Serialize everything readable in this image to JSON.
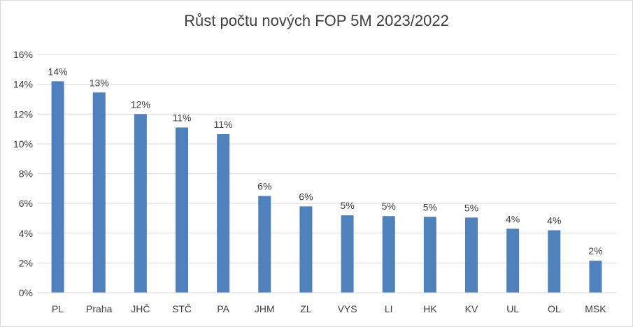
{
  "chart_data": {
    "type": "bar",
    "title": "Růst počtu nových FOP 5M 2023/2022",
    "categories": [
      "PL",
      "Praha",
      "JHČ",
      "STČ",
      "PA",
      "JHM",
      "ZL",
      "VYS",
      "LI",
      "HK",
      "KV",
      "UL",
      "OL",
      "MSK"
    ],
    "values": [
      0.142,
      0.1345,
      0.12,
      0.111,
      0.1065,
      0.065,
      0.058,
      0.052,
      0.0515,
      0.051,
      0.0505,
      0.043,
      0.042,
      0.0215
    ],
    "data_labels": [
      "14%",
      "13%",
      "12%",
      "11%",
      "11%",
      "6%",
      "6%",
      "5%",
      "5%",
      "5%",
      "5%",
      "4%",
      "4%",
      "2%"
    ],
    "ylim": [
      0,
      0.16
    ],
    "y_ticks": [
      0,
      0.02,
      0.04,
      0.06,
      0.08,
      0.1,
      0.12,
      0.14,
      0.16
    ],
    "y_tick_labels": [
      "0%",
      "2%",
      "4%",
      "6%",
      "8%",
      "10%",
      "12%",
      "14%",
      "16%"
    ],
    "xlabel": "",
    "ylabel": "",
    "grid": true,
    "legend": "none",
    "bar_color": "#4f81bd",
    "grid_color": "#d9d9d9",
    "text_color": "#404040"
  }
}
